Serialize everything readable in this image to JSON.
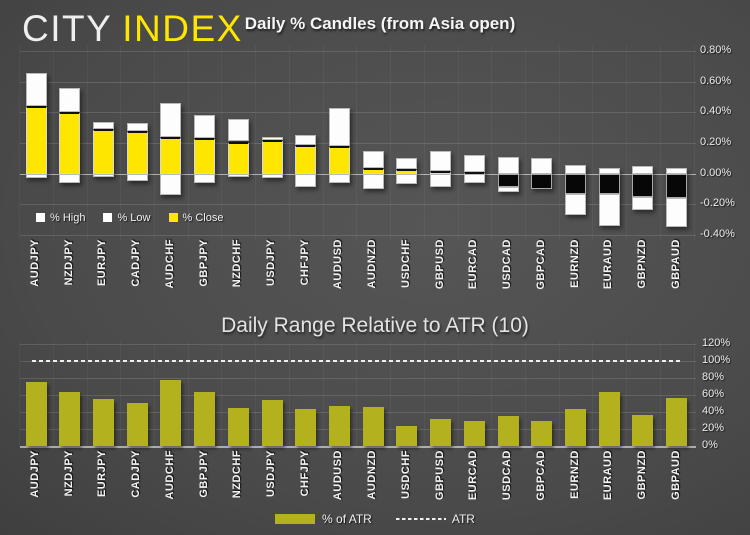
{
  "logo": {
    "city": "CITY",
    "index": "INDEX"
  },
  "candles_chart": {
    "title": "Daily % Candles (from Asia open)",
    "y_ticks": [
      "0.80%",
      "0.60%",
      "0.40%",
      "0.20%",
      "0.00%",
      "-0.20%",
      "-0.40%"
    ],
    "legend": [
      {
        "label": "% High",
        "color": "#fdfdfd"
      },
      {
        "label": "% Low",
        "color": "#fdfdfd"
      },
      {
        "label": "% Close",
        "color": "#ffe600"
      }
    ]
  },
  "atr_chart": {
    "title": "Daily Range Relative to ATR (10)",
    "y_ticks": [
      "120%",
      "100%",
      "80%",
      "60%",
      "40%",
      "20%",
      "0%"
    ],
    "legend": [
      {
        "label": "% of ATR",
        "color": "#b4b11f"
      },
      {
        "label": "ATR"
      }
    ]
  },
  "colors": {
    "yellow": "#ffe600",
    "olive": "#b4b11f",
    "candle_white": "#fdfdfd",
    "candle_black": "#070707",
    "background_dark": "#2b2b2b",
    "background_light": "#565656",
    "text": "#f0f0f0"
  },
  "chart_data": [
    {
      "type": "bar",
      "subtype": "stacked-percent-candles",
      "title": "Daily % Candles (from Asia open)",
      "categories": [
        "AUDJPY",
        "NZDJPY",
        "EURJPY",
        "CADJPY",
        "AUDCHF",
        "GBPJPY",
        "NZDCHF",
        "USDJPY",
        "CHFJPY",
        "AUDUSD",
        "AUDNZD",
        "USDCHF",
        "GBPUSD",
        "EURCAD",
        "USDCAD",
        "GBPCAD",
        "EURNZD",
        "EURAUD",
        "GBPNZD",
        "GBPAUD"
      ],
      "series": [
        {
          "name": "% High",
          "values": [
            0.66,
            0.56,
            0.34,
            0.33,
            0.46,
            0.38,
            0.36,
            0.24,
            0.25,
            0.43,
            0.15,
            0.1,
            0.15,
            0.12,
            0.11,
            0.1,
            0.06,
            0.04,
            0.05,
            0.04
          ]
        },
        {
          "name": "% Low",
          "values": [
            -0.03,
            -0.06,
            -0.02,
            -0.05,
            -0.14,
            -0.06,
            -0.02,
            -0.03,
            -0.09,
            -0.06,
            -0.1,
            -0.07,
            -0.09,
            -0.06,
            -0.12,
            -0.1,
            -0.27,
            -0.34,
            -0.24,
            -0.35
          ]
        },
        {
          "name": "% Close",
          "values": [
            0.44,
            0.4,
            0.29,
            0.28,
            0.24,
            0.23,
            0.21,
            0.22,
            0.19,
            0.18,
            0.04,
            0.03,
            0.02,
            0.01,
            -0.09,
            -0.1,
            -0.13,
            -0.13,
            -0.15,
            -0.16
          ]
        }
      ],
      "y_unit": "%",
      "ylim": [
        -0.4,
        0.8
      ],
      "grid": true,
      "legend_position": "left-inside-bottom"
    },
    {
      "type": "bar",
      "title": "Daily Range Relative to ATR (10)",
      "categories": [
        "AUDJPY",
        "NZDJPY",
        "EURJPY",
        "CADJPY",
        "AUDCHF",
        "GBPJPY",
        "NZDCHF",
        "USDJPY",
        "CHFJPY",
        "AUDUSD",
        "AUDNZD",
        "USDCHF",
        "GBPUSD",
        "EURCAD",
        "USDCAD",
        "GBPCAD",
        "EURNZD",
        "EURAUD",
        "GBPNZD",
        "GBPAUD"
      ],
      "series": [
        {
          "name": "% of ATR",
          "values": [
            75,
            63,
            55,
            51,
            78,
            63,
            45,
            54,
            44,
            47,
            46,
            24,
            32,
            29,
            35,
            29,
            43,
            64,
            36,
            57
          ]
        }
      ],
      "reference_line": {
        "name": "ATR",
        "value": 100,
        "style": "dotted"
      },
      "y_unit": "%",
      "ylim": [
        0,
        120
      ],
      "grid": true,
      "legend_position": "bottom-center"
    }
  ]
}
